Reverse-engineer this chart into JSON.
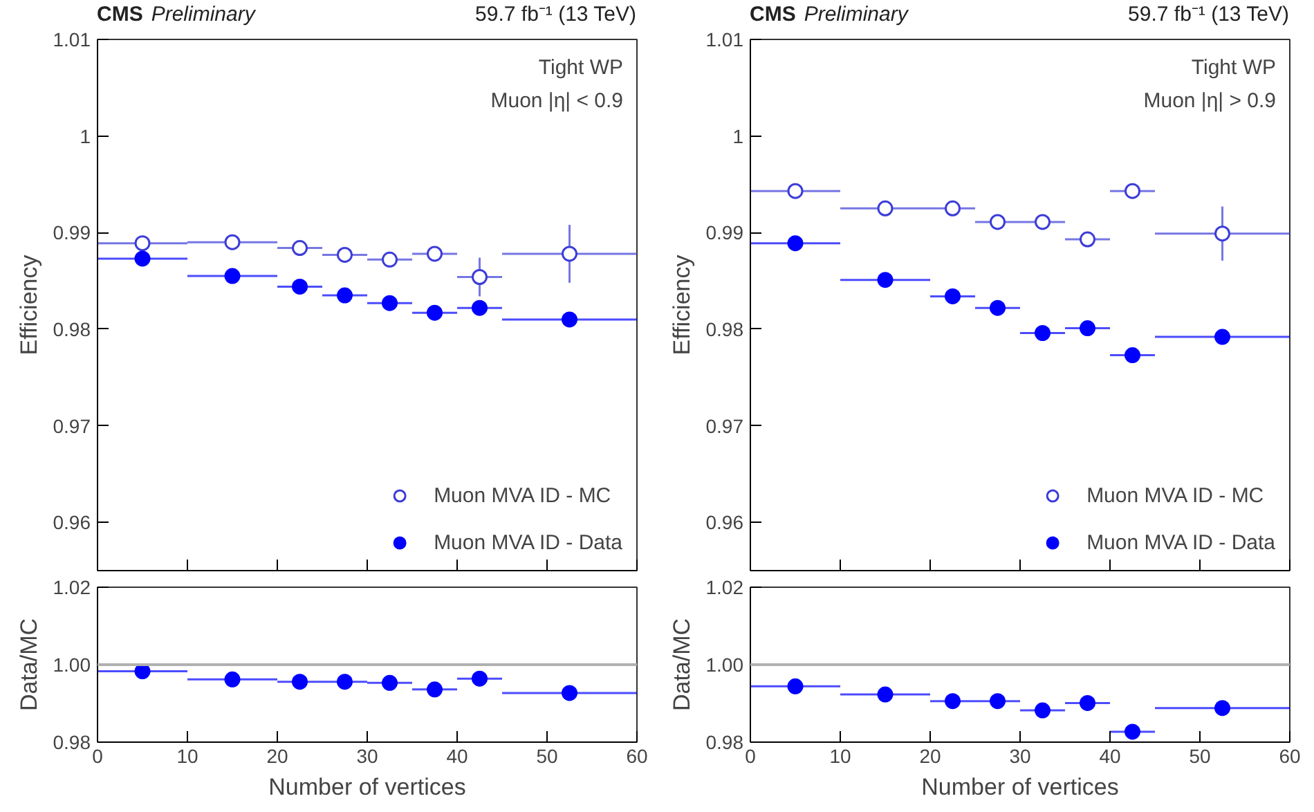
{
  "chart_data": [
    {
      "type": "scatter",
      "annotations": [
        "CMS",
        "Preliminary",
        "59.7 fb⁻¹ (13 TeV)",
        "Tight WP",
        "Muon |η| < 0.9"
      ],
      "ylabel": "Efficiency",
      "xlim": [
        0,
        60
      ],
      "xticks": [
        0,
        10,
        20,
        30,
        40,
        50,
        60
      ],
      "ylim": [
        0.955,
        1.01
      ],
      "yticks": [
        0.96,
        0.97,
        0.98,
        0.99,
        {
          "value": 1,
          "label": "1"
        },
        1.01
      ],
      "tick_labels": "y",
      "legend": "bottom right",
      "marker": "circle",
      "x": [
        5,
        15,
        22.5,
        27.5,
        32.5,
        37.5,
        42.5,
        52.5
      ],
      "series": [
        {
          "name": "Muon MVA ID - MC",
          "color": "#3c3cd8",
          "values": [
            0.9889,
            0.989,
            0.9884,
            0.9877,
            0.9872,
            0.9878,
            0.9854,
            0.9878
          ],
          "errors": [
            0.0004,
            null,
            null,
            null,
            null,
            null,
            0.002,
            0.003
          ],
          "xerrors": [
            5,
            5,
            2.5,
            2.5,
            2.5,
            2.5,
            2.5,
            7.5
          ]
        },
        {
          "name": "Muon MVA ID - Data",
          "color": "#0000ff",
          "values": [
            0.9873,
            0.9855,
            0.9844,
            0.9835,
            0.9827,
            0.9817,
            0.9822,
            0.981
          ],
          "xerrors": [
            5,
            5,
            2.5,
            2.5,
            2.5,
            2.5,
            2.5,
            7.5
          ]
        }
      ]
    },
    {
      "type": "scatter",
      "xlabel": "Number of vertices",
      "ylabel": "Data/MC",
      "xlim": [
        0,
        60
      ],
      "xticks": [
        0,
        10,
        20,
        30,
        40,
        50,
        60
      ],
      "ylim": [
        0.98,
        1.02
      ],
      "yticks": [
        {
          "value": 0.98,
          "label": "0.98"
        },
        {
          "value": 1,
          "label": "1.00"
        },
        {
          "value": 1.02,
          "label": "1.02"
        }
      ],
      "marker": "circle",
      "x": [
        5,
        15,
        22.5,
        27.5,
        32.5,
        37.5,
        42.5,
        52.5
      ],
      "ref_lines": [
        {
          "axis": "y",
          "value": 1,
          "color": "#b0b0b0"
        }
      ],
      "series": [
        {
          "color": "#0000ff",
          "values": [
            0.9983,
            0.9962,
            0.9956,
            0.9956,
            0.9953,
            0.9936,
            0.9964,
            0.9927
          ],
          "errors": [
            null,
            null,
            null,
            null,
            null,
            null,
            null,
            0.0012
          ],
          "xerrors": [
            5,
            5,
            2.5,
            2.5,
            2.5,
            2.5,
            2.5,
            7.5
          ]
        }
      ]
    },
    {
      "type": "scatter",
      "annotations": [
        "CMS",
        "Preliminary",
        "59.7 fb⁻¹ (13 TeV)",
        "Tight WP",
        "Muon |η| > 0.9"
      ],
      "ylabel": "Efficiency",
      "xlim": [
        0,
        60
      ],
      "xticks": [
        0,
        10,
        20,
        30,
        40,
        50,
        60
      ],
      "ylim": [
        0.955,
        1.01
      ],
      "yticks": [
        0.96,
        0.97,
        0.98,
        0.99,
        {
          "value": 1,
          "label": "1"
        },
        1.01
      ],
      "tick_labels": "y",
      "legend": "bottom right",
      "marker": "circle",
      "x": [
        5,
        15,
        22.5,
        27.5,
        32.5,
        37.5,
        42.5,
        52.5
      ],
      "series": [
        {
          "name": "Muon MVA ID - MC",
          "color": "#3c3cd8",
          "values": [
            0.9943,
            0.9925,
            0.9925,
            0.9911,
            0.9911,
            0.9893,
            0.9943,
            0.9899
          ],
          "errors": [
            null,
            null,
            null,
            null,
            null,
            null,
            0.0005,
            0.0028
          ],
          "xerrors": [
            5,
            5,
            2.5,
            2.5,
            2.5,
            2.5,
            2.5,
            7.5
          ]
        },
        {
          "name": "Muon MVA ID - Data",
          "color": "#0000ff",
          "values": [
            0.9889,
            0.9851,
            0.9834,
            0.9822,
            0.9796,
            0.9801,
            0.9773,
            0.9792
          ],
          "xerrors": [
            5,
            5,
            2.5,
            2.5,
            2.5,
            2.5,
            2.5,
            7.5
          ]
        }
      ]
    },
    {
      "type": "scatter",
      "xlabel": "Number of vertices",
      "ylabel": "Data/MC",
      "xlim": [
        0,
        60
      ],
      "xticks": [
        0,
        10,
        20,
        30,
        40,
        50,
        60
      ],
      "ylim": [
        0.98,
        1.02
      ],
      "yticks": [
        {
          "value": 0.98,
          "label": "0.98"
        },
        {
          "value": 1,
          "label": "1.00"
        },
        {
          "value": 1.02,
          "label": "1.02"
        }
      ],
      "marker": "circle",
      "x": [
        5,
        15,
        22.5,
        27.5,
        32.5,
        37.5,
        42.5,
        52.5
      ],
      "ref_lines": [
        {
          "axis": "y",
          "value": 1,
          "color": "#b0b0b0"
        }
      ],
      "series": [
        {
          "color": "#0000ff",
          "values": [
            0.9944,
            0.9923,
            0.9906,
            0.9906,
            0.9882,
            0.9901,
            0.9827,
            0.9888
          ],
          "errors": [
            null,
            null,
            null,
            null,
            null,
            null,
            null,
            0.0012
          ],
          "xerrors": [
            5,
            5,
            2.5,
            2.5,
            2.5,
            2.5,
            2.5,
            7.5
          ]
        }
      ]
    }
  ]
}
